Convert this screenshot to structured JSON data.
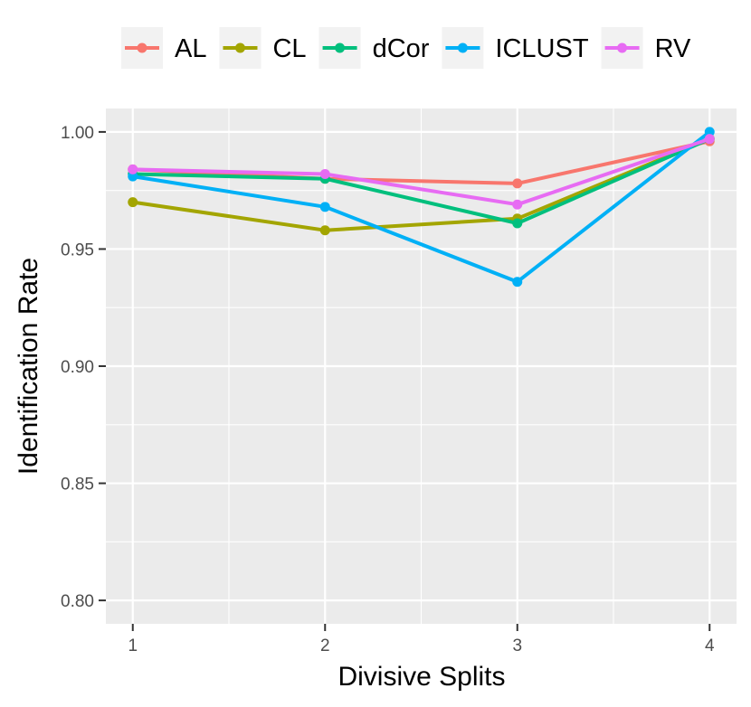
{
  "chart_data": {
    "type": "line",
    "title": "",
    "xlabel": "Divisive Splits",
    "ylabel": "Identification Rate",
    "x": [
      1,
      2,
      3,
      4
    ],
    "x_tick_labels": [
      "1",
      "2",
      "3",
      "4"
    ],
    "xlim": [
      0.86,
      4.14
    ],
    "ylim": [
      0.79,
      1.01
    ],
    "y_ticks": [
      0.8,
      0.85,
      0.9,
      0.95,
      1.0
    ],
    "y_tick_labels": [
      "0.80",
      "0.85",
      "0.90",
      "0.95",
      "1.00"
    ],
    "grid": true,
    "legend_position": "top",
    "series": [
      {
        "name": "AL",
        "color": "#F8766D",
        "values": [
          0.984,
          0.98,
          0.978,
          0.996
        ]
      },
      {
        "name": "CL",
        "color": "#A3A500",
        "values": [
          0.97,
          0.958,
          0.963,
          0.997
        ]
      },
      {
        "name": "dCor",
        "color": "#00BF7D",
        "values": [
          0.982,
          0.98,
          0.961,
          0.997
        ]
      },
      {
        "name": "ICLUST",
        "color": "#00B0F6",
        "values": [
          0.981,
          0.968,
          0.936,
          1.0
        ]
      },
      {
        "name": "RV",
        "color": "#E76BF3",
        "values": [
          0.984,
          0.982,
          0.969,
          0.997
        ]
      }
    ]
  }
}
